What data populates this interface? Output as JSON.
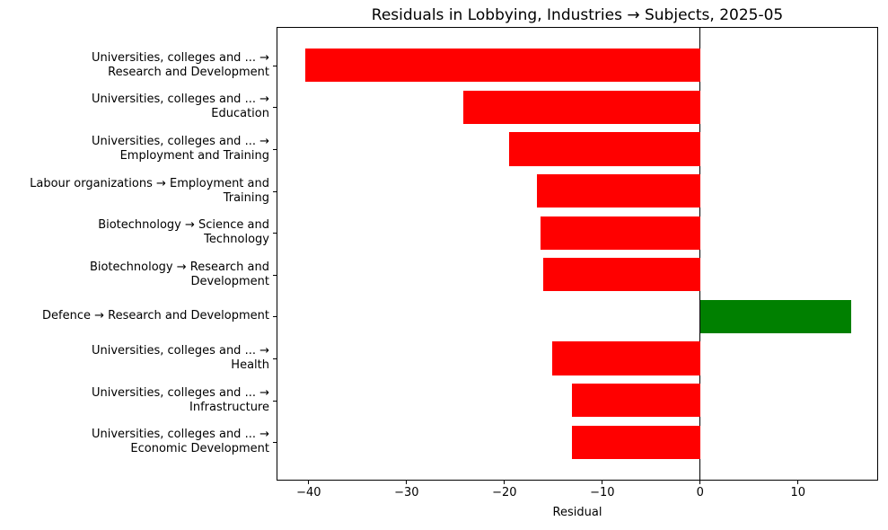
{
  "chart_data": {
    "type": "bar",
    "orientation": "horizontal",
    "title": "Residuals in Lobbying, Industries → Subjects, 2025-05",
    "xlabel": "Residual",
    "ylabel": "",
    "xlim": [
      -43.2,
      18.1
    ],
    "grid": false,
    "legend": "none",
    "zero_line": true,
    "negative_color": "#ff0000",
    "positive_color": "#008000",
    "xtick_values": [
      -40,
      -30,
      -20,
      -10,
      0,
      10
    ],
    "xtick_labels": [
      "−40",
      "−30",
      "−20",
      "−10",
      "0",
      "10"
    ],
    "categories": [
      "Universities, colleges and ... → Research and Development",
      "Universities, colleges and ... → Education",
      "Universities, colleges and ... → Employment and Training",
      "Labour organizations → Employment and Training",
      "Biotechnology → Science and Technology",
      "Biotechnology → Research and Development",
      "Defence → Research and Development",
      "Universities, colleges and ... → Health",
      "Universities, colleges and ... → Infrastructure",
      "Universities, colleges and ... → Economic Development"
    ],
    "category_lines": [
      [
        "Universities, colleges and ... →",
        "Research and Development"
      ],
      [
        "Universities, colleges and ... →",
        "Education"
      ],
      [
        "Universities, colleges and ... →",
        "Employment and Training"
      ],
      [
        "Labour organizations → Employment and",
        "Training"
      ],
      [
        "Biotechnology → Science and",
        "Technology"
      ],
      [
        "Biotechnology → Research and",
        "Development"
      ],
      [
        "Defence → Research and Development"
      ],
      [
        "Universities, colleges and ... →",
        "Health"
      ],
      [
        "Universities, colleges and ... →",
        "Infrastructure"
      ],
      [
        "Universities, colleges and ... →",
        "Economic Development"
      ]
    ],
    "values": [
      -40.4,
      -24.2,
      -19.5,
      -16.7,
      -16.3,
      -16.0,
      15.4,
      -15.1,
      -13.1,
      -13.1
    ]
  }
}
